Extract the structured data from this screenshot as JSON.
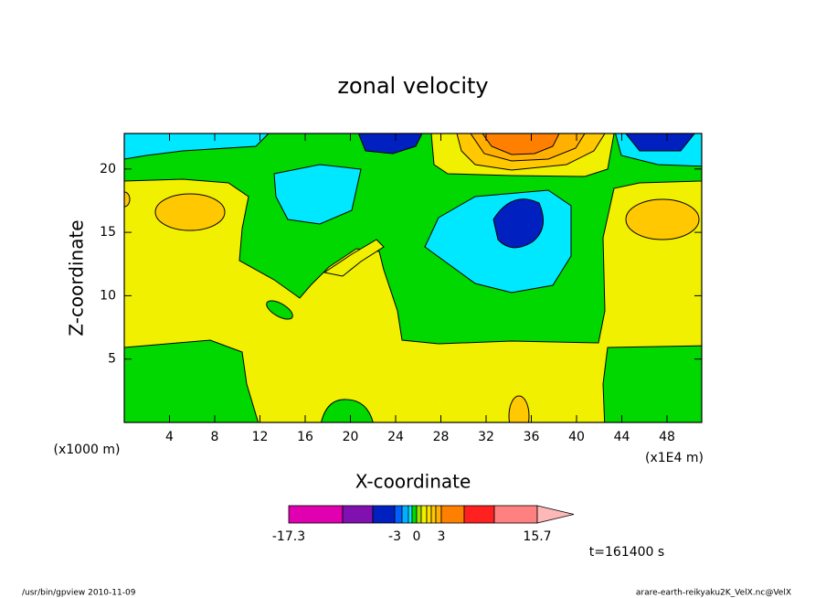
{
  "chart_data": {
    "type": "contour",
    "title": "zonal velocity",
    "xlabel": "X-coordinate",
    "ylabel": "Z-coordinate",
    "x_unit_left": "(x1000 m)",
    "x_unit_right": "(x1E4 m)",
    "time_label": "t=161400 s",
    "footer_left": "/usr/bin/gpview   2010-11-09",
    "footer_right": "arare-earth-reikyaku2K_VelX.nc@VelX",
    "xlim": [
      0,
      51.07
    ],
    "xticks": [
      4,
      8,
      12,
      16,
      20,
      24,
      28,
      32,
      36,
      40,
      44,
      48
    ],
    "ylim": [
      0,
      22.8
    ],
    "yticks": [
      5,
      10,
      15,
      20
    ],
    "colorbar": {
      "levels": [
        -17.3,
        -12,
        -8,
        -3,
        -2,
        -1,
        -0.5,
        0,
        0.6,
        1.2,
        1.8,
        2.4,
        3,
        6,
        9,
        15.7
      ],
      "colors": [
        "#e000b0",
        "#8010b0",
        "#0020c0",
        "#0060ff",
        "#00b0ff",
        "#00e8ff",
        "#00d800",
        "#a0e000",
        "#f0f000",
        "#ffe000",
        "#ffc800",
        "#ffb000",
        "#ff8000",
        "#ff2020",
        "#ff8080"
      ],
      "extend_color": "#ffb8b8",
      "ticks": [
        -17.3,
        -3,
        0,
        3,
        15.7
      ]
    }
  }
}
